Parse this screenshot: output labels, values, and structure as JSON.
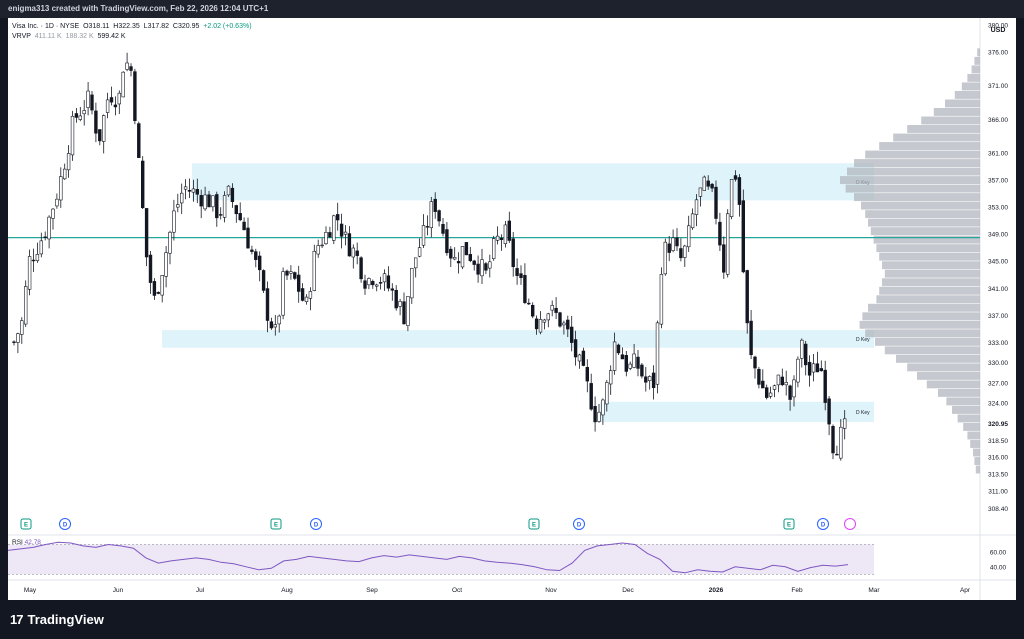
{
  "header": {
    "caption": "enigma313 created with TradingView.com, Feb 22, 2026 12:04 UTC+1"
  },
  "legend": {
    "symbol": "Visa Inc. · 1D · NYSE",
    "open_label": "O",
    "open": "318.11",
    "high_label": "H",
    "high": "322.35",
    "low_label": "L",
    "low": "317.82",
    "close_label": "C",
    "close": "320.95",
    "change": "+2.02 (+0.63%)",
    "vrvp_label": "VRVP",
    "vrvp_v1": "411.11 K",
    "vrvp_v2": "188.32 K",
    "vrvp_v3": "599.42 K"
  },
  "colors": {
    "up": "#089981",
    "down": "#131722",
    "zone": "#dff3fa",
    "level": "#26a69a",
    "rsi_line": "#7e57c2",
    "rsi_band": "#ede7f6",
    "profile": "#b2b5be"
  },
  "chart_data": {
    "type": "candlestick",
    "currency_label": "USD",
    "y_ticks": [
      "380.00",
      "376.00",
      "371.00",
      "366.00",
      "361.00",
      "357.00",
      "353.00",
      "349.00",
      "345.00",
      "341.00",
      "337.00",
      "333.00",
      "330.00",
      "327.00",
      "324.00",
      "320.95",
      "318.50",
      "316.00",
      "313.50",
      "311.00",
      "308.40"
    ],
    "current_price": "320.95",
    "x_labels": [
      "May",
      "Jun",
      "Jul",
      "Aug",
      "Sep",
      "Oct",
      "Nov",
      "Dec",
      "2026",
      "Feb",
      "Mar",
      "Apr"
    ],
    "ylim": [
      307,
      381
    ],
    "horizontal_level": 348.5,
    "zones": [
      {
        "label": "D Key",
        "top": 359.5,
        "bottom": 354.0
      },
      {
        "label": "D Key",
        "top": 334.8,
        "bottom": 332.2
      },
      {
        "label": "D Key",
        "top": 324.2,
        "bottom": 321.2
      }
    ],
    "event_markers": [
      {
        "type": "E",
        "month": "May"
      },
      {
        "type": "D",
        "month": "May"
      },
      {
        "type": "E",
        "month": "Jul"
      },
      {
        "type": "D",
        "month": "Aug"
      },
      {
        "type": "E",
        "month": "Oct"
      },
      {
        "type": "D",
        "month": "Nov"
      },
      {
        "type": "E",
        "month": "Jan"
      },
      {
        "type": "D",
        "month": "Feb"
      }
    ],
    "path_anchors": [
      [
        0,
        333
      ],
      [
        8,
        336
      ],
      [
        15,
        345
      ],
      [
        30,
        349
      ],
      [
        45,
        356
      ],
      [
        60,
        366
      ],
      [
        75,
        369
      ],
      [
        85,
        363
      ],
      [
        95,
        370
      ],
      [
        105,
        369
      ],
      [
        110,
        375
      ],
      [
        118,
        373
      ],
      [
        125,
        359
      ],
      [
        133,
        345
      ],
      [
        140,
        339
      ],
      [
        150,
        345
      ],
      [
        160,
        352
      ],
      [
        170,
        356
      ],
      [
        182,
        355
      ],
      [
        195,
        354
      ],
      [
        205,
        352
      ],
      [
        215,
        355
      ],
      [
        230,
        350
      ],
      [
        245,
        343
      ],
      [
        252,
        338
      ],
      [
        262,
        334
      ],
      [
        270,
        343
      ],
      [
        282,
        342
      ],
      [
        292,
        338
      ],
      [
        302,
        347
      ],
      [
        312,
        349
      ],
      [
        322,
        352
      ],
      [
        332,
        348
      ],
      [
        342,
        346
      ],
      [
        352,
        342
      ],
      [
        360,
        343
      ],
      [
        370,
        342
      ],
      [
        380,
        340
      ],
      [
        390,
        337
      ],
      [
        400,
        345
      ],
      [
        410,
        349
      ],
      [
        420,
        354
      ],
      [
        430,
        349
      ],
      [
        440,
        345
      ],
      [
        450,
        347
      ],
      [
        462,
        345
      ],
      [
        472,
        343
      ],
      [
        482,
        348
      ],
      [
        492,
        349
      ],
      [
        502,
        343
      ],
      [
        512,
        340
      ],
      [
        522,
        336
      ],
      [
        532,
        338
      ],
      [
        542,
        337
      ],
      [
        552,
        335
      ],
      [
        562,
        331
      ],
      [
        572,
        327
      ],
      [
        582,
        322
      ],
      [
        590,
        324
      ],
      [
        600,
        333
      ],
      [
        605,
        332
      ],
      [
        614,
        329
      ],
      [
        622,
        330
      ],
      [
        632,
        327
      ],
      [
        640,
        327
      ],
      [
        648,
        346
      ],
      [
        658,
        348
      ],
      [
        666,
        345
      ],
      [
        672,
        347
      ],
      [
        682,
        354
      ],
      [
        690,
        356
      ],
      [
        700,
        354
      ],
      [
        710,
        344
      ],
      [
        715,
        356
      ],
      [
        722,
        358
      ],
      [
        728,
        350
      ],
      [
        730,
        340
      ],
      [
        736,
        331
      ],
      [
        744,
        328
      ],
      [
        752,
        325
      ],
      [
        760,
        326
      ],
      [
        768,
        328
      ],
      [
        778,
        324
      ],
      [
        786,
        333
      ],
      [
        796,
        328
      ],
      [
        806,
        330
      ],
      [
        812,
        325
      ],
      [
        820,
        317
      ],
      [
        826,
        319
      ],
      [
        834,
        320.95
      ]
    ],
    "rsi": {
      "label": "RSI",
      "value": "42.78",
      "y_ticks": [
        "60.00",
        "40.00"
      ],
      "ylim": [
        25,
        80
      ],
      "upper_band": 70,
      "lower_band": 30,
      "values": [
        62,
        64,
        66,
        70,
        73,
        72,
        68,
        66,
        70,
        68,
        65,
        52,
        45,
        48,
        50,
        52,
        50,
        46,
        44,
        40,
        36,
        38,
        48,
        50,
        54,
        52,
        50,
        48,
        47,
        52,
        55,
        53,
        56,
        54,
        52,
        50,
        54,
        52,
        48,
        46,
        45,
        43,
        40,
        36,
        35,
        45,
        62,
        68,
        70,
        72,
        70,
        58,
        50,
        34,
        32,
        36,
        34,
        33,
        40,
        38,
        36,
        42,
        40,
        34,
        39,
        42,
        41,
        43
      ]
    },
    "volume_profile": [
      0.02,
      0.04,
      0.06,
      0.09,
      0.13,
      0.18,
      0.25,
      0.33,
      0.42,
      0.52,
      0.62,
      0.72,
      0.82,
      0.9,
      0.95,
      1.0,
      0.96,
      0.9,
      0.85,
      0.82,
      0.8,
      0.78,
      0.76,
      0.74,
      0.72,
      0.7,
      0.68,
      0.7,
      0.72,
      0.74,
      0.8,
      0.84,
      0.86,
      0.82,
      0.75,
      0.68,
      0.6,
      0.52,
      0.45,
      0.38,
      0.3,
      0.24,
      0.2,
      0.16,
      0.12,
      0.09,
      0.07,
      0.05,
      0.04,
      0.03
    ]
  },
  "footer": {
    "logo_mark": "17",
    "brand": "TradingView"
  }
}
